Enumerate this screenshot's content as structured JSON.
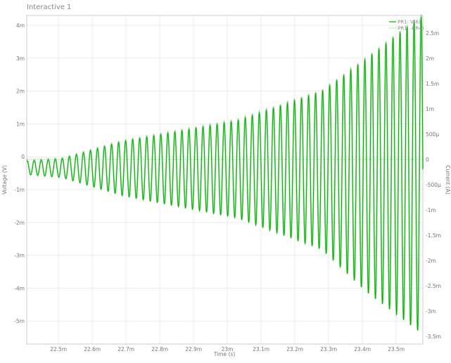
{
  "window": {
    "title": "Interactive 1"
  },
  "chart_data": {
    "type": "line",
    "title": "",
    "xlabel": "Time (s)",
    "ylabel": "Voltage (V)",
    "y2label": "Current (A)",
    "xlim": [
      0.022406,
      0.023579
    ],
    "ylim": [
      -0.0057,
      0.0043
    ],
    "y2lim": [
      -0.003654,
      0.002847
    ],
    "grid": true,
    "legend_position": "top-right",
    "x_ticks": [
      {
        "v": 0.0225,
        "label": "22.5m"
      },
      {
        "v": 0.0226,
        "label": "22.6m"
      },
      {
        "v": 0.0227,
        "label": "22.7m"
      },
      {
        "v": 0.0228,
        "label": "22.8m"
      },
      {
        "v": 0.0229,
        "label": "22.9m"
      },
      {
        "v": 0.023,
        "label": "23m"
      },
      {
        "v": 0.0231,
        "label": "23.1m"
      },
      {
        "v": 0.0232,
        "label": "23.2m"
      },
      {
        "v": 0.0233,
        "label": "23.3m"
      },
      {
        "v": 0.0234,
        "label": "23.4m"
      },
      {
        "v": 0.0235,
        "label": "23.5m"
      }
    ],
    "y_ticks": [
      {
        "v": 0.004,
        "label": "4m"
      },
      {
        "v": 0.003,
        "label": "3m"
      },
      {
        "v": 0.002,
        "label": "2m"
      },
      {
        "v": 0.001,
        "label": "1m"
      },
      {
        "v": 0,
        "label": "0"
      },
      {
        "v": -0.001,
        "label": "-1m"
      },
      {
        "v": -0.002,
        "label": "-2m"
      },
      {
        "v": -0.003,
        "label": "-3m"
      },
      {
        "v": -0.004,
        "label": "-4m"
      },
      {
        "v": -0.005,
        "label": "-5m"
      }
    ],
    "y2_ticks": [
      {
        "v": 0.0025,
        "label": "2.5m"
      },
      {
        "v": 0.002,
        "label": "2m"
      },
      {
        "v": 0.0015,
        "label": "1.5m"
      },
      {
        "v": 0.001,
        "label": "1m"
      },
      {
        "v": 0.0005,
        "label": "500µ"
      },
      {
        "v": 0,
        "label": "0"
      },
      {
        "v": -0.0005,
        "label": "-500µ"
      },
      {
        "v": -0.001,
        "label": "-1m"
      },
      {
        "v": -0.0015,
        "label": "-1.5m"
      },
      {
        "v": -0.002,
        "label": "-2m"
      },
      {
        "v": -0.0025,
        "label": "-2.5m"
      },
      {
        "v": -0.003,
        "label": "-3m"
      },
      {
        "v": -0.0035,
        "label": "-3.5m"
      }
    ],
    "frequency_hz": 48000,
    "series": [
      {
        "name": "PR1: V(6)",
        "axis": "left",
        "color": "#00b000",
        "style": "solid",
        "envelope_t": [
          0.02241,
          0.02251,
          0.02269,
          0.02303,
          0.02328,
          0.02341,
          0.02357
        ],
        "envelope_max": [
          -0.00013,
          -6e-05,
          0.00047,
          0.0011,
          0.002,
          0.00298,
          0.00425
        ],
        "envelope_min": [
          -0.00055,
          -0.00064,
          -0.00119,
          -0.00187,
          -0.00283,
          -0.0041,
          -0.00534
        ]
      },
      {
        "name": "PR1: -I(R4)",
        "axis": "right",
        "color": "#7fd67f",
        "style": "dotted",
        "envelope_t": [
          0.02241,
          0.02251,
          0.02269,
          0.02303,
          0.02328,
          0.02341,
          0.02357
        ],
        "envelope_max": [
          -1.4e-05,
          3e-05,
          0.000375,
          0.00079,
          0.001375,
          0.00201,
          0.00285
        ],
        "envelope_min": [
          -0.00029,
          -0.00035,
          -0.00071,
          -0.00115,
          -0.00178,
          -0.00261,
          -0.00342
        ]
      }
    ]
  }
}
